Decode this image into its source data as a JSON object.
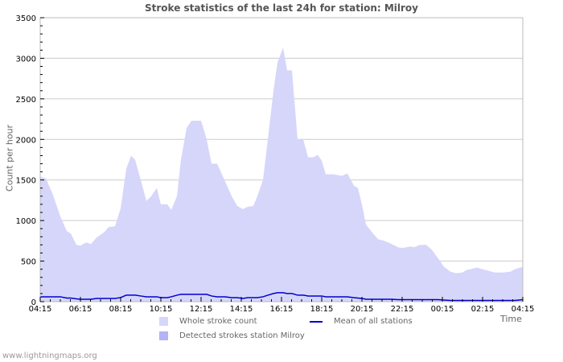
{
  "title": "Stroke statistics of the last 24h for station: Milroy",
  "footer": "www.lightningmaps.org",
  "colors": {
    "whole_fill": "#d6d6fb",
    "detected_fill": "#b3b3f5",
    "mean_line": "#0000cc",
    "grid": "#cccccc",
    "frame": "#bbbbbb"
  },
  "legend": {
    "whole": "Whole stroke count",
    "detected": "Detected strokes station Milroy",
    "mean": "Mean of all stations"
  },
  "chart_data": {
    "type": "area",
    "title": "Stroke statistics of the last 24h for station: Milroy",
    "xlabel": "Time",
    "ylabel": "Count per hour",
    "ylim": [
      0,
      3500
    ],
    "yticks": [
      0,
      500,
      1000,
      1500,
      2000,
      2500,
      3000,
      3500
    ],
    "xticks": [
      "04:15",
      "06:15",
      "08:15",
      "10:15",
      "12:15",
      "14:15",
      "16:15",
      "18:15",
      "20:15",
      "22:15",
      "00:15",
      "02:15",
      "04:15"
    ],
    "grid": true,
    "legend_position": "bottom",
    "x_hours": [
      0,
      0.28,
      0.6,
      1.0,
      1.32,
      1.52,
      1.8,
      2.0,
      2.28,
      2.52,
      2.8,
      3.2,
      3.4,
      3.72,
      4.0,
      4.28,
      4.52,
      4.72,
      5.0,
      5.28,
      5.52,
      5.8,
      6.0,
      6.32,
      6.52,
      6.8,
      7.0,
      7.28,
      7.52,
      8.0,
      8.28,
      8.52,
      8.8,
      9.2,
      9.52,
      9.8,
      10.08,
      10.32,
      10.6,
      10.8,
      11.08,
      11.32,
      11.6,
      11.8,
      12.08,
      12.28,
      12.52,
      12.8,
      13.08,
      13.32,
      13.6,
      13.8,
      14.0,
      14.2,
      14.6,
      15.0,
      15.28,
      15.6,
      15.8,
      16.0,
      16.2,
      16.52,
      16.8,
      17.12,
      17.48,
      17.8,
      18.0,
      18.4,
      18.6,
      18.88,
      19.2,
      19.48,
      19.8,
      20.08,
      20.4,
      20.68,
      21.0,
      21.2,
      21.4,
      21.72,
      22.0,
      22.3,
      22.6,
      23.0,
      23.4,
      23.6,
      23.8,
      24.0
    ],
    "series": [
      {
        "name": "Whole stroke count",
        "values": [
          1540,
          1520,
          1340,
          1050,
          870,
          840,
          700,
          690,
          730,
          710,
          790,
          860,
          920,
          930,
          1150,
          1640,
          1800,
          1750,
          1500,
          1240,
          1300,
          1400,
          1200,
          1200,
          1130,
          1300,
          1750,
          2140,
          2230,
          2230,
          2000,
          1700,
          1700,
          1480,
          1300,
          1180,
          1140,
          1170,
          1180,
          1300,
          1500,
          2000,
          2600,
          2950,
          3130,
          2850,
          2850,
          2000,
          2000,
          1780,
          1780,
          1810,
          1740,
          1570,
          1570,
          1550,
          1580,
          1430,
          1400,
          1200,
          950,
          850,
          770,
          750,
          710,
          670,
          660,
          680,
          670,
          700,
          700,
          640,
          530,
          430,
          370,
          350,
          360,
          390,
          400,
          420,
          400,
          380,
          360,
          360,
          370,
          400,
          415,
          430
        ]
      },
      {
        "name": "Mean of all stations",
        "values": [
          60,
          60,
          60,
          60,
          45,
          45,
          35,
          30,
          30,
          30,
          40,
          40,
          40,
          40,
          50,
          80,
          80,
          80,
          70,
          60,
          60,
          60,
          50,
          50,
          60,
          80,
          90,
          90,
          90,
          90,
          90,
          70,
          60,
          60,
          50,
          50,
          40,
          50,
          50,
          50,
          60,
          80,
          100,
          110,
          110,
          100,
          100,
          80,
          80,
          70,
          70,
          70,
          70,
          60,
          60,
          60,
          60,
          50,
          45,
          40,
          30,
          30,
          30,
          30,
          30,
          25,
          25,
          25,
          25,
          25,
          25,
          25,
          25,
          20,
          15,
          15,
          15,
          15,
          15,
          15,
          15,
          15,
          15,
          15,
          15,
          15,
          20,
          25
        ]
      },
      {
        "name": "Detected strokes station Milroy",
        "values": []
      }
    ]
  }
}
